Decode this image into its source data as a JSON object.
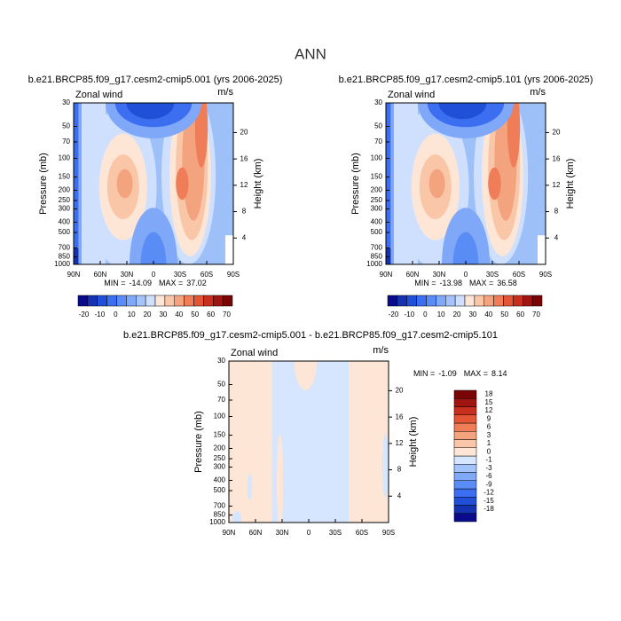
{
  "title": "ANN",
  "chart_data": [
    {
      "type": "contour",
      "title": "b.e21.BRCP85.f09_g17.cesm2-cmip5.001 (yrs 2006-2025)",
      "label": "Zonal wind",
      "units": "m/s",
      "ylabel": "Pressure (mb)",
      "y2label": "Height (km)",
      "xlim": [
        90,
        -90
      ],
      "xticks": [
        {
          "value": 90,
          "label": "90N"
        },
        {
          "value": 60,
          "label": "60N"
        },
        {
          "value": 30,
          "label": "30N"
        },
        0,
        {
          "value": -30,
          "label": "30S"
        },
        {
          "value": -60,
          "label": "60S"
        },
        {
          "value": -90,
          "label": "90S"
        }
      ],
      "ylim": [
        1000,
        30
      ],
      "yscale": "log",
      "yticks": [
        30,
        50,
        70,
        100,
        150,
        200,
        250,
        300,
        400,
        500,
        700,
        850,
        1000
      ],
      "y2lim": [
        0,
        24.5
      ],
      "y2ticks": [
        4,
        8,
        12,
        16,
        20
      ],
      "min_label": "MIN =",
      "min": -14.09,
      "max_label": "MAX =",
      "max": 37.02,
      "colorbar": {
        "orientation": "horizontal",
        "labels": [
          -20,
          -10,
          0,
          10,
          20,
          30,
          40,
          50,
          60,
          70
        ],
        "colors": [
          "#0a0a8c",
          "#1532b0",
          "#2050d8",
          "#3b6ef0",
          "#5a8cf5",
          "#7fa8f8",
          "#a4c3fb",
          "#cfe0ff",
          "#fde6d6",
          "#f9c6a8",
          "#f4a37f",
          "#ee7d58",
          "#e35535",
          "#c8301d",
          "#a01411",
          "#7a0505"
        ]
      }
    },
    {
      "type": "contour",
      "title": "b.e21.BRCP85.f09_g17.cesm2-cmip5.101 (yrs 2006-2025)",
      "label": "Zonal wind",
      "units": "m/s",
      "ylabel": "Pressure (mb)",
      "y2label": "Height (km)",
      "xlim": [
        90,
        -90
      ],
      "xticks": [
        {
          "value": 90,
          "label": "90N"
        },
        {
          "value": 60,
          "label": "60N"
        },
        {
          "value": 30,
          "label": "30N"
        },
        0,
        {
          "value": -30,
          "label": "30S"
        },
        {
          "value": -60,
          "label": "60S"
        },
        {
          "value": -90,
          "label": "90S"
        }
      ],
      "ylim": [
        1000,
        30
      ],
      "yscale": "log",
      "yticks": [
        30,
        50,
        70,
        100,
        150,
        200,
        250,
        300,
        400,
        500,
        700,
        850,
        1000
      ],
      "y2lim": [
        0,
        24.5
      ],
      "y2ticks": [
        4,
        8,
        12,
        16,
        20
      ],
      "min_label": "MIN =",
      "min": -13.98,
      "max_label": "MAX =",
      "max": 36.58,
      "colorbar": {
        "orientation": "horizontal",
        "labels": [
          -20,
          -10,
          0,
          10,
          20,
          30,
          40,
          50,
          60,
          70
        ],
        "colors": [
          "#0a0a8c",
          "#1532b0",
          "#2050d8",
          "#3b6ef0",
          "#5a8cf5",
          "#7fa8f8",
          "#a4c3fb",
          "#cfe0ff",
          "#fde6d6",
          "#f9c6a8",
          "#f4a37f",
          "#ee7d58",
          "#e35535",
          "#c8301d",
          "#a01411",
          "#7a0505"
        ]
      }
    },
    {
      "type": "contour",
      "title": "b.e21.BRCP85.f09_g17.cesm2-cmip5.001 - b.e21.BRCP85.f09_g17.cesm2-cmip5.101",
      "label": "Zonal wind",
      "units": "m/s",
      "ylabel": "Pressure (mb)",
      "y2label": "Height (km)",
      "xlim": [
        90,
        -90
      ],
      "xticks": [
        {
          "value": 90,
          "label": "90N"
        },
        {
          "value": 60,
          "label": "60N"
        },
        {
          "value": 30,
          "label": "30N"
        },
        0,
        {
          "value": -30,
          "label": "30S"
        },
        {
          "value": -60,
          "label": "60S"
        },
        {
          "value": -90,
          "label": "90S"
        }
      ],
      "ylim": [
        1000,
        30
      ],
      "yscale": "log",
      "yticks": [
        30,
        50,
        70,
        100,
        150,
        200,
        250,
        300,
        400,
        500,
        700,
        850,
        1000
      ],
      "y2lim": [
        0,
        24.5
      ],
      "y2ticks": [
        4,
        8,
        12,
        16,
        20
      ],
      "min_label": "MIN =",
      "min": -1.09,
      "max_label": "MAX =",
      "max": 8.14,
      "colorbar": {
        "orientation": "vertical",
        "labels": [
          -18,
          -15,
          -12,
          -9,
          -6,
          -3,
          -1,
          0,
          1,
          3,
          6,
          9,
          12,
          15,
          18
        ],
        "colors": [
          "#0a0a8c",
          "#1532b0",
          "#2050d8",
          "#3b6ef0",
          "#5a8cf5",
          "#7fa8f8",
          "#a4c3fb",
          "#d6e6ff",
          "#fde6d6",
          "#f9c6a8",
          "#f4a37f",
          "#ee7d58",
          "#e35535",
          "#c8301d",
          "#a01411",
          "#7a0505"
        ]
      }
    }
  ]
}
